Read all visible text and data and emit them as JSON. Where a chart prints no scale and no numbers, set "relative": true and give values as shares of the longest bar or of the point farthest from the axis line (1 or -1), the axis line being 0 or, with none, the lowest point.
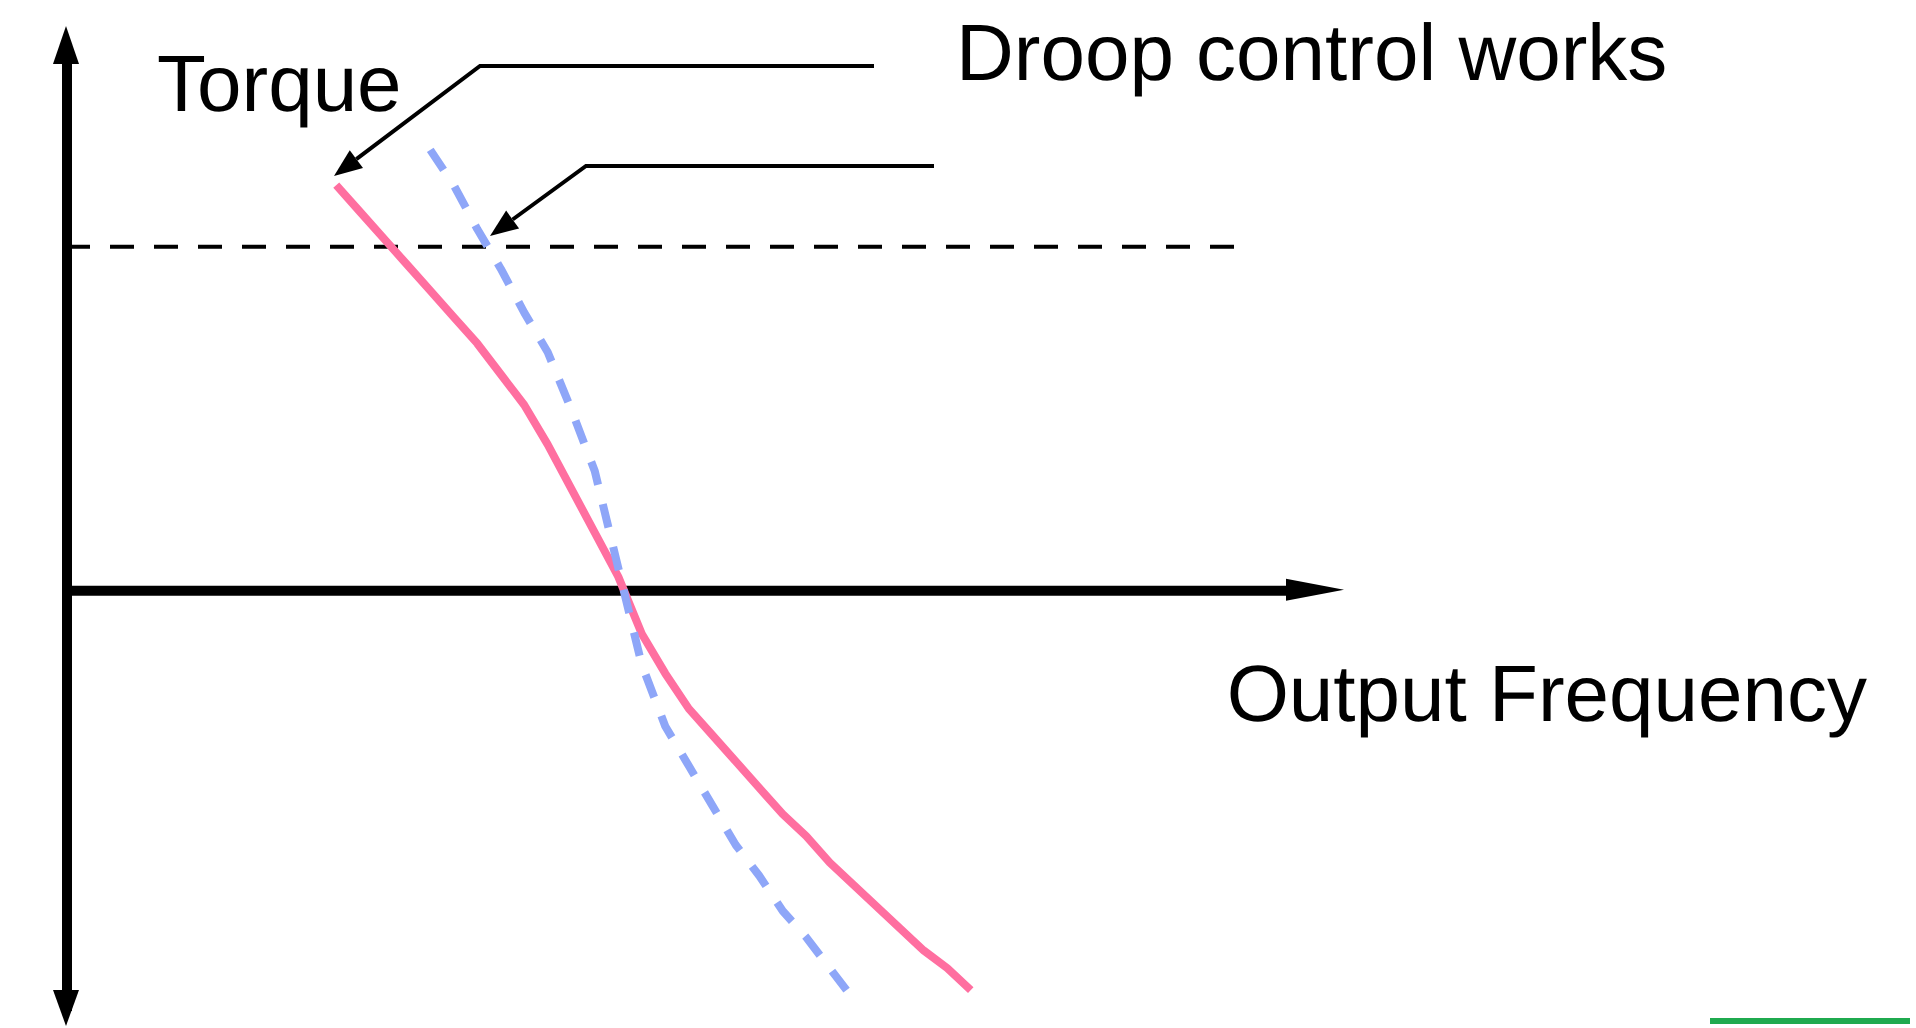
{
  "chart_data": {
    "type": "line",
    "xlabel": "Output Frequency",
    "ylabel": "Torque",
    "annotations": [
      "Droop control works"
    ],
    "relative": true,
    "categories": [
      null,
      null,
      null,
      null,
      null,
      null,
      null,
      null,
      null,
      null,
      null,
      null,
      null,
      null,
      null,
      null,
      null,
      null,
      null,
      null,
      null,
      null,
      null,
      null,
      null,
      null,
      null,
      null,
      null,
      null,
      null,
      null,
      null,
      null,
      null,
      null,
      null,
      null,
      null,
      null,
      null,
      null,
      null,
      null,
      null,
      null,
      null,
      null,
      null,
      null,
      null,
      null
    ],
    "series": [
      {
        "color": "#ff6fa0",
        "line_style": "solid",
        "values": [
          null,
          null,
          null,
          null,
          null,
          null,
          null,
          null,
          null,
          null,
          null,
          0.92,
          0.86,
          0.8,
          0.74,
          0.68,
          0.62,
          0.56,
          0.49,
          0.42,
          0.33,
          0.23,
          0.13,
          0.03,
          -0.1,
          -0.19,
          -0.27,
          -0.33,
          -0.39,
          -0.45,
          -0.51,
          -0.56,
          -0.62,
          -0.67,
          -0.72,
          -0.77,
          -0.82,
          -0.86,
          -0.91,
          null,
          null,
          null,
          null,
          null,
          null,
          null,
          null,
          null,
          null,
          null,
          null,
          null
        ]
      },
      {
        "color": "#8ea6f8",
        "line_style": "dashed",
        "values": [
          null,
          null,
          null,
          null,
          null,
          null,
          null,
          null,
          null,
          null,
          null,
          null,
          null,
          null,
          null,
          1,
          0.92,
          0.82,
          0.73,
          0.63,
          0.54,
          0.41,
          0.27,
          0.05,
          -0.17,
          -0.31,
          -0.4,
          -0.49,
          -0.58,
          -0.65,
          -0.73,
          -0.79,
          -0.86,
          -0.93,
          null,
          null,
          null,
          null,
          null,
          null,
          null,
          null,
          null,
          null,
          null,
          null,
          null,
          null,
          null,
          null,
          null,
          null
        ]
      }
    ],
    "ref_lines": [
      {
        "axis": "y",
        "value": 0.78,
        "color": "#000000",
        "line_style": "dashed"
      }
    ]
  }
}
